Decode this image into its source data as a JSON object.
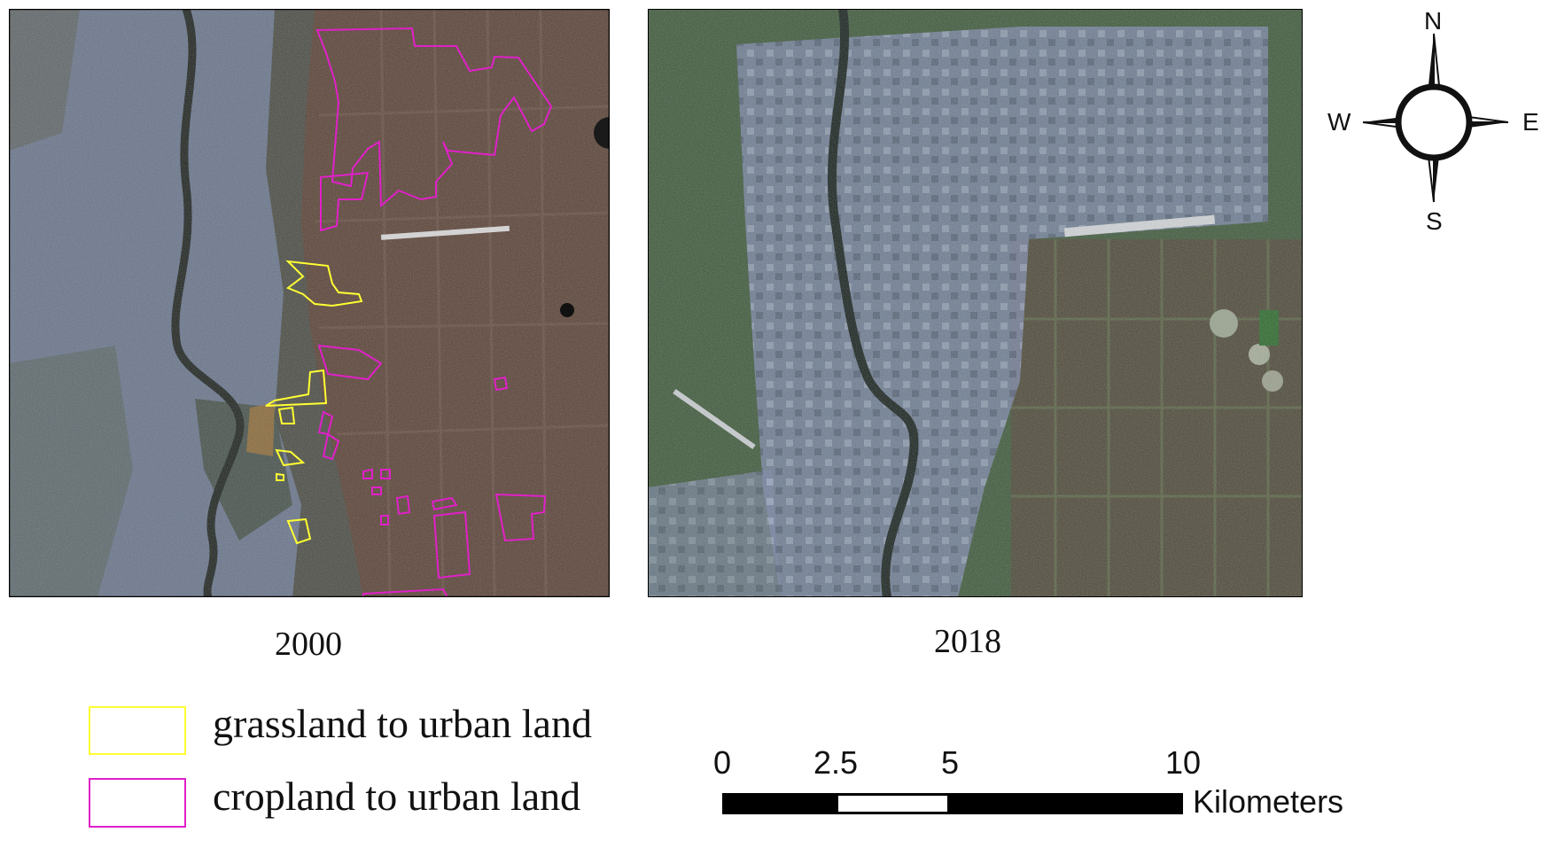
{
  "panels": {
    "left_caption": "2000",
    "right_caption": "2018"
  },
  "colors": {
    "grassland_outline": "#ffff33",
    "cropland_outline": "#e020c8"
  },
  "compass": {
    "north": "N",
    "south": "S",
    "east": "E",
    "west": "W"
  },
  "legend": {
    "items": [
      {
        "label": "grassland to urban land",
        "color": "#ffff33"
      },
      {
        "label": "cropland to urban land",
        "color": "#e020c8"
      }
    ]
  },
  "scale_bar": {
    "ticks": [
      "0",
      "2.5",
      "5",
      "10"
    ],
    "unit": "Kilometers"
  }
}
